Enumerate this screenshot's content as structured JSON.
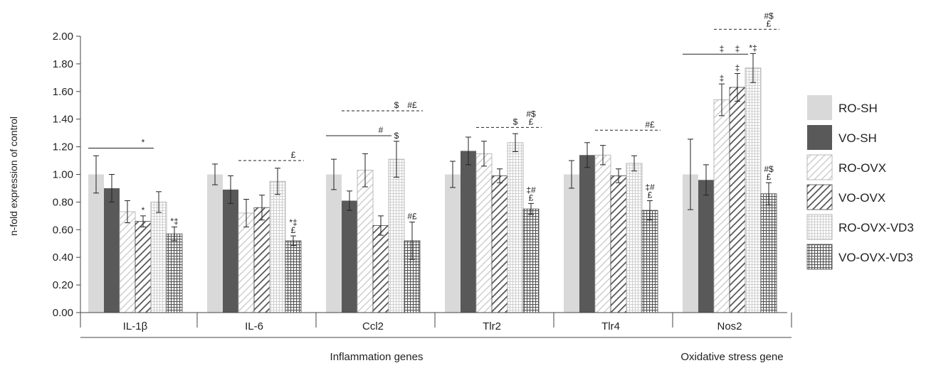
{
  "chart_data": {
    "type": "bar",
    "ylabel": "n-fold expression of control",
    "ylim": [
      0,
      2.0
    ],
    "yticks": [
      "0.00",
      "0.20",
      "0.40",
      "0.60",
      "0.80",
      "1.00",
      "1.20",
      "1.40",
      "1.60",
      "1.80",
      "2.00"
    ],
    "grid": false,
    "legend_position": "right",
    "categories": [
      "IL-1β",
      "IL-6",
      "Ccl2",
      "Tlr2",
      "Tlr4",
      "Nos2"
    ],
    "groups": [
      {
        "label": "Inflammation genes",
        "categories": [
          "IL-1β",
          "IL-6",
          "Ccl2",
          "Tlr2",
          "Tlr4"
        ]
      },
      {
        "label": "Oxidative stress gene",
        "categories": [
          "Nos2"
        ]
      }
    ],
    "series": [
      {
        "name": "RO-SH",
        "color": "#d9d9d9",
        "pattern": "solid-light",
        "values": [
          1.0,
          1.0,
          1.0,
          1.0,
          1.0,
          1.0
        ],
        "errors": [
          0.135,
          0.075,
          0.11,
          0.095,
          0.1,
          0.255
        ]
      },
      {
        "name": "VO-SH",
        "color": "#595959",
        "pattern": "solid-dark",
        "values": [
          0.9,
          0.89,
          0.81,
          1.17,
          1.14,
          0.96
        ],
        "errors": [
          0.1,
          0.1,
          0.07,
          0.1,
          0.09,
          0.11
        ]
      },
      {
        "name": "RO-OVX",
        "color": "#d9d9d9",
        "pattern": "light-diagonal",
        "values": [
          0.73,
          0.72,
          1.03,
          1.15,
          1.14,
          1.54
        ],
        "errors": [
          0.08,
          0.1,
          0.12,
          0.09,
          0.07,
          0.115
        ]
      },
      {
        "name": "VO-OVX",
        "color": "#595959",
        "pattern": "dark-diagonal",
        "values": [
          0.66,
          0.76,
          0.63,
          0.99,
          0.99,
          1.63
        ],
        "errors": [
          0.04,
          0.09,
          0.07,
          0.05,
          0.05,
          0.1
        ]
      },
      {
        "name": "RO-OVX-VD3",
        "color": "#d9d9d9",
        "pattern": "light-grid",
        "values": [
          0.8,
          0.95,
          1.11,
          1.23,
          1.08,
          1.77
        ],
        "errors": [
          0.075,
          0.095,
          0.13,
          0.065,
          0.055,
          0.105
        ]
      },
      {
        "name": "VO-OVX-VD3",
        "color": "#595959",
        "pattern": "dark-grid",
        "values": [
          0.57,
          0.52,
          0.52,
          0.75,
          0.74,
          0.86
        ],
        "errors": [
          0.05,
          0.035,
          0.135,
          0.04,
          0.07,
          0.08
        ]
      }
    ],
    "annotations": [
      {
        "category": "IL-1β",
        "series": "VO-OVX",
        "text": [
          "*"
        ]
      },
      {
        "category": "IL-1β",
        "series": "VO-OVX-VD3",
        "text": [
          "*‡"
        ]
      },
      {
        "category": "IL-6",
        "series": "VO-OVX-VD3",
        "text": [
          "*‡",
          "£"
        ]
      },
      {
        "category": "Ccl2",
        "series": "RO-OVX-VD3",
        "text": [
          "$"
        ]
      },
      {
        "category": "Ccl2",
        "series": "VO-OVX-VD3",
        "text": [
          "#£"
        ]
      },
      {
        "category": "Tlr2",
        "series": "VO-OVX-VD3",
        "text": [
          "‡#",
          "£"
        ]
      },
      {
        "category": "Tlr4",
        "series": "VO-OVX-VD3",
        "text": [
          "‡#",
          "£"
        ]
      },
      {
        "category": "Nos2",
        "series": "RO-OVX",
        "text": [
          "‡"
        ]
      },
      {
        "category": "Nos2",
        "series": "VO-OVX",
        "text": [
          "‡"
        ]
      },
      {
        "category": "Nos2",
        "series": "RO-OVX-VD3",
        "text": [
          "*‡"
        ]
      },
      {
        "category": "Nos2",
        "series": "VO-OVX-VD3",
        "text": [
          "#$",
          "£"
        ]
      }
    ],
    "comparison_lines": [
      {
        "category": "IL-1β",
        "style": "solid",
        "from": "RO-SH",
        "to": "VO-OVX",
        "y": 1.19,
        "labels": [
          {
            "series": "VO-OVX",
            "text": "*"
          }
        ]
      },
      {
        "category": "IL-6",
        "style": "dashed",
        "from": "RO-OVX",
        "to": "VO-OVX-VD3",
        "y": 1.1,
        "labels": [
          {
            "series": "VO-OVX-VD3",
            "text": "£"
          }
        ]
      },
      {
        "category": "Ccl2",
        "style": "solid",
        "from": "RO-SH",
        "to": "VO-OVX",
        "y": 1.28,
        "labels": [
          {
            "series": "VO-OVX",
            "text": "#"
          }
        ]
      },
      {
        "category": "Ccl2",
        "style": "dashed",
        "from": "VO-SH",
        "to": "VO-OVX-VD3",
        "y": 1.46,
        "labels": [
          {
            "series": "RO-OVX-VD3",
            "text": "$"
          },
          {
            "series": "VO-OVX-VD3",
            "text": "#£"
          }
        ]
      },
      {
        "category": "Tlr2",
        "style": "dashed",
        "from": "RO-OVX",
        "to": "VO-OVX-VD3",
        "y": 1.34,
        "labels": [
          {
            "series": "RO-OVX-VD3",
            "text": "$"
          },
          {
            "series": "VO-OVX-VD3",
            "text": "#$ / £"
          }
        ]
      },
      {
        "category": "Tlr4",
        "style": "dashed",
        "from": "RO-OVX",
        "to": "VO-OVX-VD3",
        "y": 1.32,
        "labels": [
          {
            "series": "VO-OVX-VD3",
            "text": "#£"
          }
        ]
      },
      {
        "category": "Nos2",
        "style": "solid",
        "from": "RO-SH",
        "to": "VO-OVX",
        "y": 1.87,
        "labels": [
          {
            "series": "RO-OVX",
            "text": "‡"
          },
          {
            "series": "VO-OVX",
            "text": "‡"
          }
        ]
      },
      {
        "category": "Nos2",
        "style": "dashed",
        "from": "RO-OVX",
        "to": "VO-OVX-VD3",
        "y": 2.05,
        "labels": [
          {
            "series": "VO-OVX-VD3",
            "text": "#$ / £"
          }
        ]
      }
    ]
  }
}
